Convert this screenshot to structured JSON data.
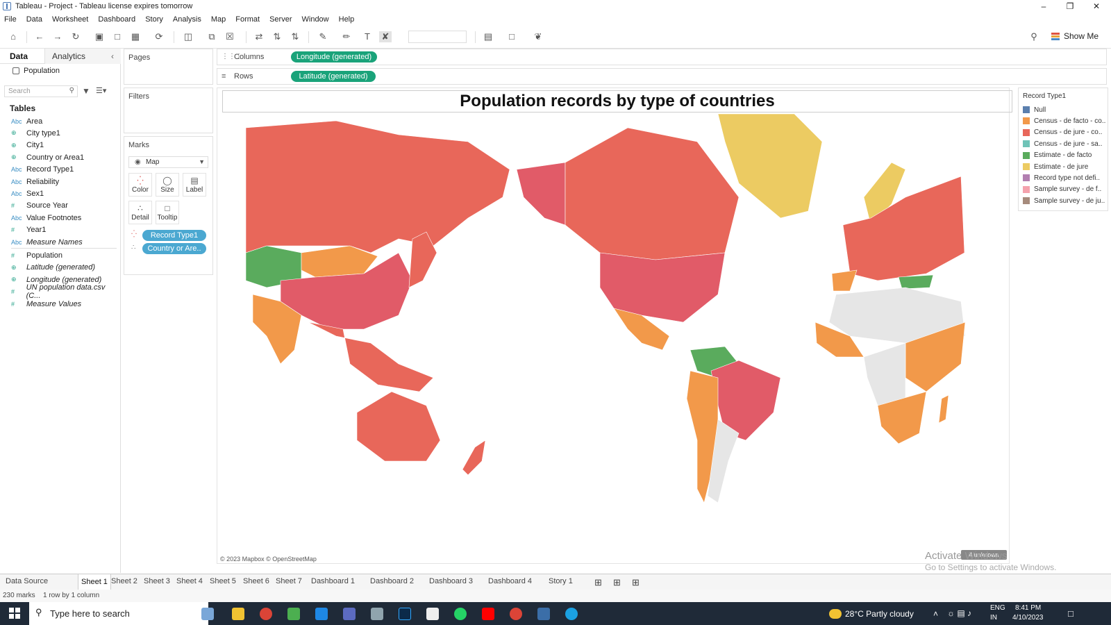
{
  "window": {
    "title": "Tableau - Project - Tableau license expires tomorrow"
  },
  "menu": [
    "File",
    "Data",
    "Worksheet",
    "Dashboard",
    "Story",
    "Analysis",
    "Map",
    "Format",
    "Server",
    "Window",
    "Help"
  ],
  "toolbar": {
    "show_me": "Show Me"
  },
  "data_pane": {
    "tab_data": "Data",
    "tab_analytics": "Analytics",
    "datasource": "Population",
    "search_placeholder": "Search",
    "tables_heading": "Tables",
    "fields": [
      {
        "icon": "Abc",
        "name": "Area",
        "italic": false
      },
      {
        "icon": "globe",
        "name": "City type1",
        "italic": false
      },
      {
        "icon": "globe",
        "name": "City1",
        "italic": false
      },
      {
        "icon": "globe",
        "name": "Country or Area1",
        "italic": false
      },
      {
        "icon": "Abc",
        "name": "Record Type1",
        "italic": false
      },
      {
        "icon": "Abc",
        "name": "Reliability",
        "italic": false
      },
      {
        "icon": "Abc",
        "name": "Sex1",
        "italic": false
      },
      {
        "icon": "#",
        "name": "Source Year",
        "italic": false
      },
      {
        "icon": "Abc",
        "name": "Value Footnotes",
        "italic": false
      },
      {
        "icon": "#",
        "name": "Year1",
        "italic": false
      },
      {
        "icon": "Abc",
        "name": "Measure Names",
        "italic": true
      },
      {
        "icon": "#",
        "name": "Population",
        "italic": false
      },
      {
        "icon": "globe",
        "name": "Latitude (generated)",
        "italic": true
      },
      {
        "icon": "globe",
        "name": "Longitude (generated)",
        "italic": true
      },
      {
        "icon": "#",
        "name": "UN population data.csv (C...",
        "italic": true
      },
      {
        "icon": "#",
        "name": "Measure Values",
        "italic": true
      }
    ]
  },
  "shelves": {
    "pages": "Pages",
    "filters": "Filters",
    "marks": "Marks",
    "mark_type": "Map",
    "buttons": {
      "color": "Color",
      "size": "Size",
      "label": "Label",
      "detail": "Detail",
      "tooltip": "Tooltip"
    },
    "mark_pills": [
      "Record Type1",
      "Country or Are.."
    ],
    "columns_label": "Columns",
    "rows_label": "Rows",
    "columns_pill": "Longitude (generated)",
    "rows_pill": "Latitude (generated)"
  },
  "view": {
    "title": "Population records by type of countries",
    "attribution": "© 2023 Mapbox © OpenStreetMap",
    "unknown_badge": "4 unknown"
  },
  "legend": {
    "title": "Record Type1",
    "items": [
      {
        "label": "Null",
        "color": "#5b7fae"
      },
      {
        "label": "Census - de facto - co..",
        "color": "#f2994a"
      },
      {
        "label": "Census - de jure - co..",
        "color": "#e8675a"
      },
      {
        "label": "Census - de jure - sa..",
        "color": "#6fc3b7"
      },
      {
        "label": "Estimate - de facto",
        "color": "#5aab5d"
      },
      {
        "label": "Estimate - de jure",
        "color": "#eccb62"
      },
      {
        "label": "Record type not defi..",
        "color": "#b27fb0"
      },
      {
        "label": "Sample survey - de f..",
        "color": "#f4a2ad"
      },
      {
        "label": "Sample survey - de ju..",
        "color": "#a68b7c"
      }
    ]
  },
  "sheet_tabs": [
    "Data Source",
    "Sheet 1",
    "Sheet 2",
    "Sheet 3",
    "Sheet 4",
    "Sheet 5",
    "Sheet 6",
    "Sheet 7",
    "Dashboard 1",
    "Dashboard 2",
    "Dashboard 3",
    "Dashboard 4",
    "Story 1"
  ],
  "status": {
    "marks": "230 marks",
    "rowscols": "1 row by 1 column"
  },
  "watermark": {
    "line1": "Activate Windows",
    "line2": "Go to Settings to activate Windows."
  },
  "taskbar": {
    "search": "Type here to search",
    "weather": "28°C  Partly cloudy",
    "lang1": "ENG",
    "lang2": "IN",
    "time": "8:41 PM",
    "date": "4/10/2023"
  }
}
